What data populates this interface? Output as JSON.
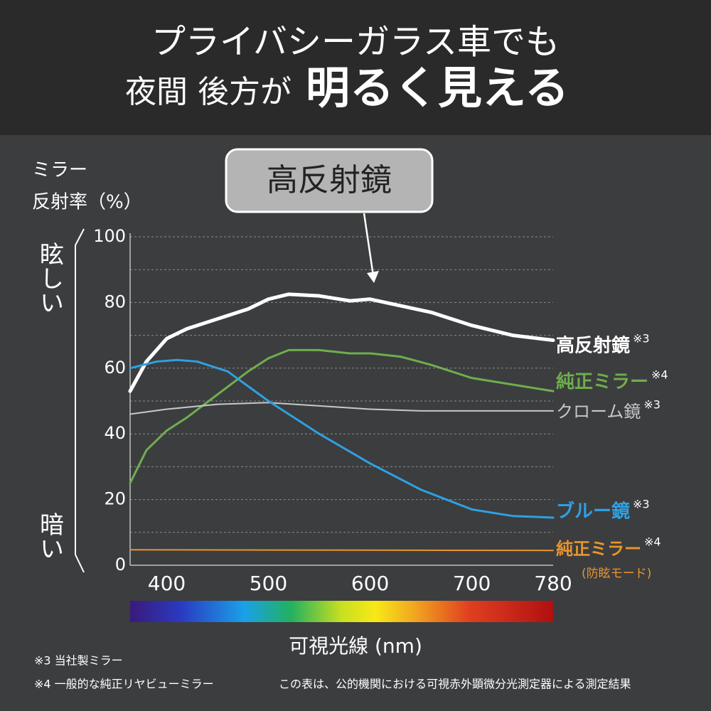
{
  "chart_data": {
    "type": "line",
    "title": "プライバシーガラス車でも",
    "subtitle_small": "夜間 後方が",
    "subtitle_large": "明るく見える",
    "y_title": [
      "ミラー",
      "反射率（%）"
    ],
    "y_top_note": "眩しい",
    "y_bottom_note": "暗い",
    "callout": "高反射鏡",
    "x_title": "可視光線 (nm)",
    "xlim": [
      364,
      780
    ],
    "ylim": [
      0,
      100
    ],
    "xticks": [
      400,
      500,
      600,
      700,
      780
    ],
    "yticks": [
      0,
      20,
      40,
      60,
      80,
      100
    ],
    "grid_minor": [
      10,
      30,
      50,
      70,
      90
    ],
    "series": [
      {
        "name": "高反射鏡",
        "note": "※3",
        "color": "#ffffff",
        "x": [
          364,
          380,
          400,
          420,
          450,
          480,
          500,
          520,
          550,
          580,
          600,
          630,
          660,
          700,
          740,
          780
        ],
        "values": [
          53,
          62,
          69,
          72,
          75,
          78,
          81,
          82.5,
          82,
          80.5,
          81,
          79,
          77,
          73,
          70,
          68.5
        ]
      },
      {
        "name": "純正ミラー",
        "note": "※4",
        "color": "#6fae4e",
        "x": [
          364,
          380,
          400,
          420,
          450,
          480,
          500,
          520,
          550,
          580,
          600,
          630,
          660,
          700,
          740,
          780
        ],
        "values": [
          25,
          35,
          41,
          45,
          52,
          59,
          63,
          65.5,
          65.5,
          64.5,
          64.5,
          63.5,
          61,
          57,
          55,
          53
        ]
      },
      {
        "name": "クローム鏡",
        "note": "※3",
        "color": "#c8c8c8",
        "x": [
          364,
          400,
          450,
          500,
          550,
          600,
          650,
          700,
          780
        ],
        "values": [
          46,
          47.5,
          49,
          49.5,
          48.5,
          47.5,
          47,
          47,
          47
        ]
      },
      {
        "name": "ブルー鏡",
        "note": "※3",
        "color": "#2fa0e0",
        "x": [
          364,
          390,
          410,
          430,
          460,
          500,
          550,
          600,
          650,
          700,
          740,
          780
        ],
        "values": [
          60,
          62,
          62.5,
          62,
          59,
          50,
          40,
          31,
          23,
          17,
          15,
          14.5
        ]
      },
      {
        "name": "純正ミラー",
        "note": "※4",
        "sub": "(防眩モード)",
        "color": "#e8952e",
        "x": [
          364,
          780
        ],
        "values": [
          4.7,
          4.5
        ]
      }
    ],
    "footnotes": [
      "※3 当社製ミラー",
      "※4 一般的な純正リヤビューミラー",
      "この表は、公的機関における可視赤外顕微分光測定器による測定結果"
    ]
  }
}
